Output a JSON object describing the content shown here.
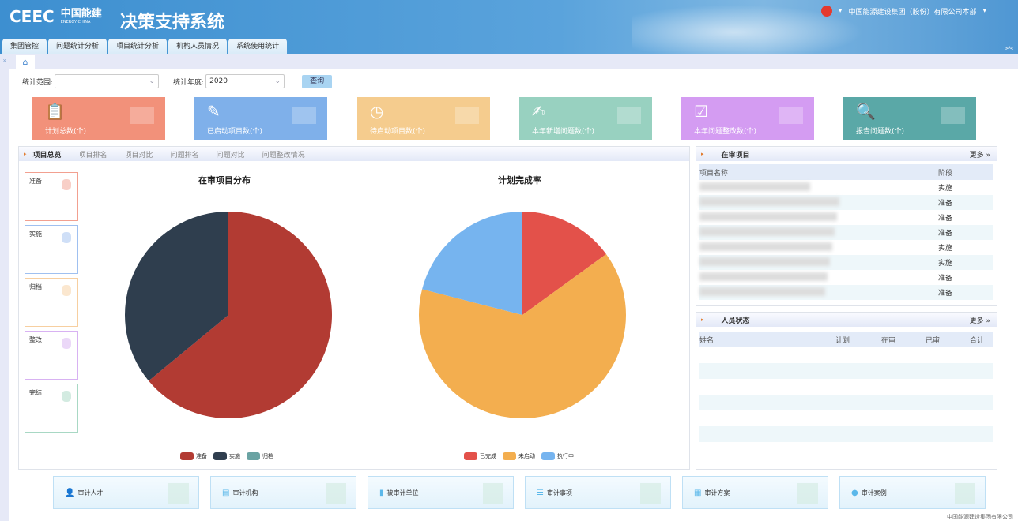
{
  "header": {
    "logo_text": "CEEC",
    "logo_cn": "中国能建",
    "logo_en": "ENERGY CHINA",
    "title": "决策支持系统",
    "org": "中国能源建设集团（股份）有限公司本部"
  },
  "tabs": [
    "集团管控",
    "问题统计分析",
    "项目统计分析",
    "机构人员情况",
    "系统使用统计"
  ],
  "filters": {
    "scope_label": "统计范围:",
    "scope_value": "",
    "year_label": "统计年度:",
    "year_value": "2020",
    "query": "查询"
  },
  "cards": [
    {
      "label": "计划总数(个)",
      "color": "#f2917a",
      "icon": "clipboard-icon"
    },
    {
      "label": "已启动项目数(个)",
      "color": "#7fb0ea",
      "icon": "edit-refresh-icon"
    },
    {
      "label": "待启动项目数(个)",
      "color": "#f5cc8e",
      "icon": "clock-icon"
    },
    {
      "label": "本年新增问题数(个)",
      "color": "#98d1c0",
      "icon": "document-edit-icon"
    },
    {
      "label": "本年问题整改数(个)",
      "color": "#d49cf2",
      "icon": "inbox-check-icon"
    },
    {
      "label": "报告问题数(个)",
      "color": "#5aa8a7",
      "icon": "document-search-icon"
    }
  ],
  "main_tabs": [
    "项目总览",
    "项目排名",
    "项目对比",
    "问题排名",
    "问题对比",
    "问题整改情况"
  ],
  "stages": [
    {
      "label": "准备",
      "color": "#f2a090"
    },
    {
      "label": "实施",
      "color": "#9fc0f0"
    },
    {
      "label": "归档",
      "color": "#f7cfa0"
    },
    {
      "label": "整改",
      "color": "#d8b2f2"
    },
    {
      "label": "完结",
      "color": "#a8d8c4"
    }
  ],
  "chart_data": [
    {
      "type": "pie",
      "title": "在审项目分布",
      "labels": [
        "准备",
        "实施",
        "归档"
      ],
      "values": [
        64,
        36,
        0
      ],
      "colors": [
        "#b23b33",
        "#2f3e4e",
        "#6aa3a3"
      ],
      "legend": "bottom"
    },
    {
      "type": "pie",
      "title": "计划完成率",
      "labels": [
        "已完成",
        "未启动",
        "执行中"
      ],
      "values": [
        15,
        64,
        21
      ],
      "colors": [
        "#e3514a",
        "#f3ae4f",
        "#76b4ef"
      ],
      "legend": "bottom"
    }
  ],
  "review_projects": {
    "title": "在审项目",
    "more": "更多 »",
    "columns": [
      "项目名称",
      "阶段"
    ],
    "rows": [
      "实施",
      "准备",
      "准备",
      "准备",
      "实施",
      "实施",
      "准备",
      "准备"
    ]
  },
  "personnel": {
    "title": "人员状态",
    "more": "更多 »",
    "columns": [
      "姓名",
      "计划",
      "在审",
      "已审",
      "合计"
    ]
  },
  "bottom_cards": [
    {
      "label": "审计人才",
      "icon": "person-icon"
    },
    {
      "label": "审计机构",
      "icon": "document-icon"
    },
    {
      "label": "被审计单位",
      "icon": "bar-chart-icon"
    },
    {
      "label": "审计事项",
      "icon": "list-icon"
    },
    {
      "label": "审计方案",
      "icon": "calendar-icon"
    },
    {
      "label": "审计案例",
      "icon": "globe-icon"
    }
  ],
  "footer": "中国能源建设集团有限公司"
}
